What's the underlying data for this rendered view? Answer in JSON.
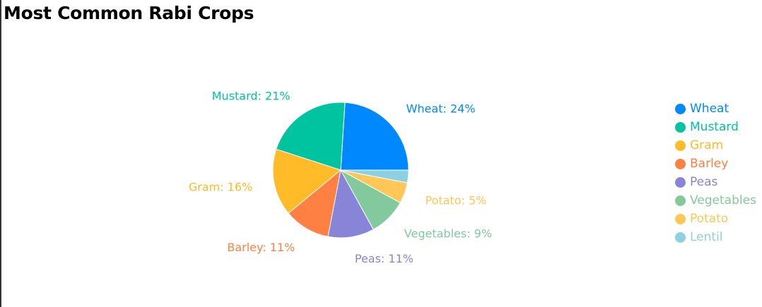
{
  "title": "Most Common Rabi Crops",
  "chart_data": {
    "type": "pie",
    "title": "Most Common Rabi Crops",
    "legend": "right",
    "categories": [
      "Wheat",
      "Mustard",
      "Gram",
      "Barley",
      "Peas",
      "Vegetables",
      "Potato",
      "Lentil"
    ],
    "values": [
      24,
      21,
      16,
      11,
      11,
      9,
      5,
      3
    ],
    "labels": [
      "Wheat: 24%",
      "Mustard: 21%",
      "Gram: 16%",
      "Barley: 11%",
      "Peas: 11%",
      "Vegetables: 9%",
      "Potato: 5%",
      ""
    ],
    "colors": [
      "#0088FE",
      "#00C49F",
      "#FFBB28",
      "#FF8042",
      "#8884D8",
      "#82CA9D",
      "#FFC658",
      "#8DD1E1"
    ]
  }
}
